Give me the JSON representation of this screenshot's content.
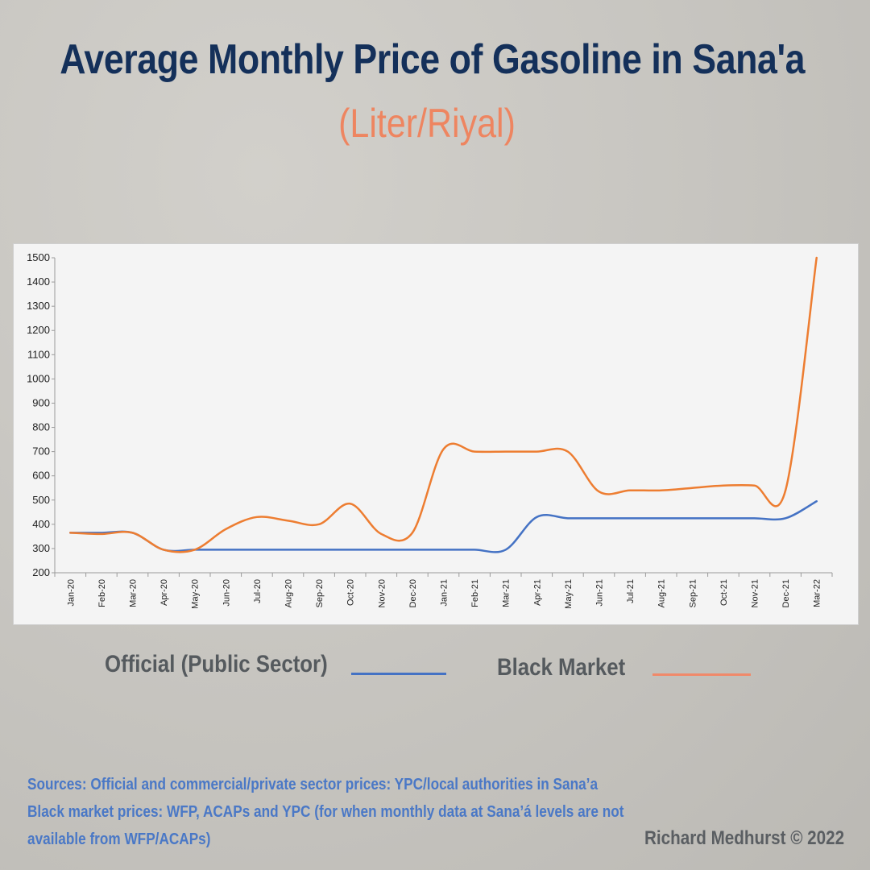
{
  "title": "Average Monthly Price of Gasoline in Sana'a",
  "subtitle": "(Liter/Riyal)",
  "legend": {
    "official_label": "Official (Public Sector)",
    "black_market_label": "Black Market"
  },
  "colors": {
    "official": "#4472c4",
    "black_market": "#ed7d31",
    "legend_black_market": "#f0896a",
    "title": "#14305a",
    "subtitle": "#ee8560",
    "sources": "#4a78c6"
  },
  "sources": {
    "line1": "Sources: Official and commercial/private sector prices: YPC/local authorities in Sana’a",
    "line2": "Black market prices: WFP, ACAPs and YPC (for when monthly data at Sana’á levels are not",
    "line3": "available from WFP/ACAPs)"
  },
  "credit": "Richard Medhurst © 2022",
  "chart_data": {
    "type": "line",
    "title": "Average Monthly Price of Gasoline in Sana'a",
    "subtitle": "(Liter/Riyal)",
    "xlabel": "",
    "ylabel": "",
    "ylim": [
      200,
      1500
    ],
    "yticks": [
      200,
      300,
      400,
      500,
      600,
      700,
      800,
      900,
      1000,
      1100,
      1200,
      1300,
      1400,
      1500
    ],
    "grid": false,
    "legend_position": "bottom",
    "categories": [
      "Jan-20",
      "Feb-20",
      "Mar-20",
      "Apr-20",
      "May-20",
      "Jun-20",
      "Jul-20",
      "Aug-20",
      "Sep-20",
      "Oct-20",
      "Nov-20",
      "Dec-20",
      "Jan-21",
      "Feb-21",
      "Mar-21",
      "Apr-21",
      "May-21",
      "Jun-21",
      "Jul-21",
      "Aug-21",
      "Sep-21",
      "Oct-21",
      "Nov-21",
      "Dec-21",
      "Mar-22"
    ],
    "series": [
      {
        "name": "Official (Public Sector)",
        "values": [
          365,
          365,
          365,
          295,
          295,
          295,
          295,
          295,
          295,
          295,
          295,
          295,
          295,
          295,
          295,
          430,
          425,
          425,
          425,
          425,
          425,
          425,
          425,
          425,
          495
        ]
      },
      {
        "name": "Black Market",
        "values": [
          365,
          360,
          365,
          295,
          295,
          380,
          430,
          415,
          400,
          485,
          360,
          365,
          710,
          700,
          700,
          700,
          700,
          535,
          540,
          540,
          550,
          560,
          560,
          540,
          1500
        ]
      }
    ]
  }
}
